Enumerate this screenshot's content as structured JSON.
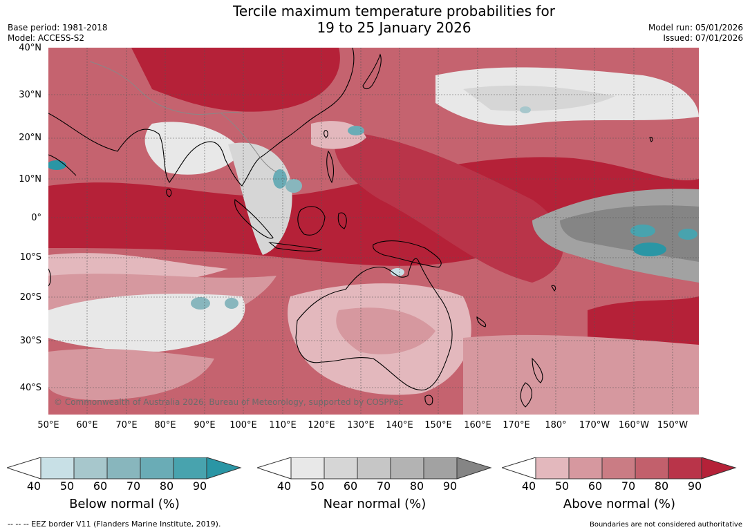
{
  "title_line1": "Tercile maximum temperature probabilities for",
  "title_line2": "19 to 25 January 2026",
  "base_period": "Base period: 1981-2018",
  "model": "Model: ACCESS-S2",
  "model_run": "Model run: 05/01/2026",
  "issued": "Issued: 07/01/2026",
  "lat_labels": [
    "40°N",
    "30°N",
    "20°N",
    "10°N",
    "0°",
    "10°S",
    "20°S",
    "30°S",
    "40°S"
  ],
  "lon_labels": [
    "50°E",
    "60°E",
    "70°E",
    "80°E",
    "90°E",
    "100°E",
    "110°E",
    "120°E",
    "130°E",
    "140°E",
    "150°E",
    "160°E",
    "170°E",
    "180°",
    "170°W",
    "160°W",
    "150°W"
  ],
  "copyright": "© Commonwealth of Australia 2026, Bureau of Meteorology, supported by COSPPac",
  "colorbars": [
    {
      "title": "Below normal (%)",
      "ticks": [
        "40",
        "50",
        "60",
        "70",
        "80",
        "90"
      ],
      "colors": [
        "#c8e0e6",
        "#a7c7cc",
        "#88b6bd",
        "#6aacb6",
        "#48a3ae",
        "#2a96a5"
      ]
    },
    {
      "title": "Near normal (%)",
      "ticks": [
        "40",
        "50",
        "60",
        "70",
        "80",
        "90"
      ],
      "colors": [
        "#e8e8e8",
        "#d6d6d6",
        "#c6c6c6",
        "#b3b3b3",
        "#a2a2a2",
        "#858585"
      ]
    },
    {
      "title": "Above normal (%)",
      "ticks": [
        "40",
        "50",
        "60",
        "70",
        "80",
        "90"
      ],
      "colors": [
        "#e3b8bd",
        "#d6989f",
        "#ca7c84",
        "#c2606c",
        "#b93449",
        "#b52138"
      ]
    }
  ],
  "footer_left": "--  --  -- EEZ border V11 (Flanders Marine Institute, 2019).",
  "footer_right": "Boundaries are not considered authoritative"
}
